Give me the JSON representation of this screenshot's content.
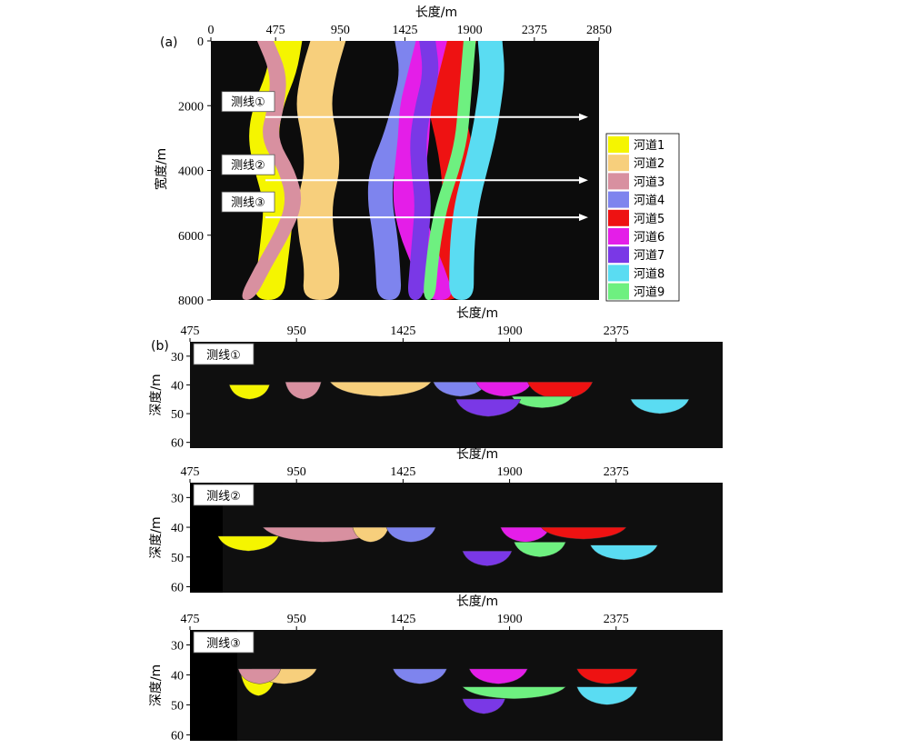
{
  "panel_a": {
    "tag": "(a)",
    "xlabel": "长度/m",
    "ylabel": "宽度/m",
    "x_ticks": [
      "0",
      "475",
      "950",
      "1425",
      "1900",
      "2375",
      "2850"
    ],
    "y_ticks": [
      "0",
      "2000",
      "4000",
      "6000",
      "8000"
    ],
    "survey_lines": [
      {
        "label": "测线①",
        "y": 2350
      },
      {
        "label": "测线②",
        "y": 4300
      },
      {
        "label": "测线③",
        "y": 5450
      }
    ]
  },
  "legend": [
    {
      "name": "河道1",
      "color": "#f5f500"
    },
    {
      "name": "河道2",
      "color": "#f7cf7c"
    },
    {
      "name": "河道3",
      "color": "#d890a0"
    },
    {
      "name": "河道4",
      "color": "#7e84ee"
    },
    {
      "name": "河道5",
      "color": "#ee1212"
    },
    {
      "name": "河道6",
      "color": "#e41ee8"
    },
    {
      "name": "河道7",
      "color": "#7a38e6"
    },
    {
      "name": "河道8",
      "color": "#5adcf2"
    },
    {
      "name": "河道9",
      "color": "#6ef080"
    }
  ],
  "panel_b": {
    "tag": "(b)",
    "xlabel": "长度/m",
    "ylabel": "深度/m",
    "x_ticks": [
      "475",
      "950",
      "1425",
      "1900",
      "2375"
    ],
    "y_ticks": [
      "30",
      "40",
      "50",
      "60"
    ],
    "sections": [
      {
        "label": "测线①"
      },
      {
        "label": "测线②"
      },
      {
        "label": "测线③"
      }
    ]
  },
  "chart_data": [
    {
      "type": "heatmap",
      "title": "",
      "xlabel": "长度/m",
      "ylabel": "宽度/m",
      "xlim": [
        0,
        2850
      ],
      "ylim": [
        0,
        8000
      ],
      "channels": [
        {
          "name": "河道1",
          "center_x": [
            560,
            520,
            420,
            380,
            430,
            500,
            480,
            450,
            420
          ],
          "width": 220
        },
        {
          "name": "河道2",
          "center_x": [
            860,
            790,
            750,
            800,
            820,
            760,
            770,
            820,
            800
          ],
          "width": 260
        },
        {
          "name": "河道3",
          "center_x": [
            400,
            500,
            480,
            420,
            560,
            620,
            520,
            380,
            260
          ],
          "width": 120
        },
        {
          "name": "河道4",
          "center_x": [
            1440,
            1480,
            1420,
            1350,
            1250,
            1240,
            1280,
            1300,
            1310
          ],
          "width": 180
        },
        {
          "name": "河道5",
          "center_x": [
            1820,
            1750,
            1720,
            1780,
            1820,
            1840,
            1800,
            1760,
            1720
          ],
          "width": 260
        },
        {
          "name": "河道6",
          "center_x": [
            1620,
            1560,
            1500,
            1490,
            1460,
            1450,
            1500,
            1600,
            1680
          ],
          "width": 230
        },
        {
          "name": "河道7",
          "center_x": [
            1590,
            1620,
            1560,
            1520,
            1530,
            1560,
            1540,
            1520,
            1500
          ],
          "width": 120
        },
        {
          "name": "河道8",
          "center_x": [
            2050,
            2070,
            2040,
            2000,
            1940,
            1880,
            1850,
            1840,
            1840
          ],
          "width": 180
        },
        {
          "name": "河道9",
          "center_x": [
            1900,
            1880,
            1860,
            1840,
            1780,
            1700,
            1650,
            1620,
            1600
          ],
          "width": 90
        }
      ]
    },
    {
      "type": "heatmap",
      "title": "测线①",
      "xlabel": "长度/m",
      "ylabel": "深度/m",
      "xlim": [
        475,
        2850
      ],
      "ylim": [
        25,
        62
      ],
      "bodies": [
        {
          "name": "河道1",
          "x0": 650,
          "x1": 830,
          "top": 40,
          "bottom": 45
        },
        {
          "name": "河道3",
          "x0": 900,
          "x1": 1060,
          "top": 39,
          "bottom": 45
        },
        {
          "name": "河道2",
          "x0": 1100,
          "x1": 1550,
          "top": 39,
          "bottom": 44
        },
        {
          "name": "河道4",
          "x0": 1560,
          "x1": 1800,
          "top": 39,
          "bottom": 44
        },
        {
          "name": "河道6",
          "x0": 1750,
          "x1": 2000,
          "top": 39,
          "bottom": 44
        },
        {
          "name": "河道5",
          "x0": 1980,
          "x1": 2270,
          "top": 39,
          "bottom": 45
        },
        {
          "name": "河道9",
          "x0": 1910,
          "x1": 2180,
          "top": 44,
          "bottom": 48
        },
        {
          "name": "河道7",
          "x0": 1660,
          "x1": 1950,
          "top": 45,
          "bottom": 51
        },
        {
          "name": "河道8",
          "x0": 2440,
          "x1": 2700,
          "top": 45,
          "bottom": 50
        }
      ]
    },
    {
      "type": "heatmap",
      "title": "测线②",
      "xlabel": "长度/m",
      "ylabel": "深度/m",
      "xlim": [
        475,
        2850
      ],
      "ylim": [
        25,
        62
      ],
      "bodies": [
        {
          "name": "河道1",
          "x0": 600,
          "x1": 870,
          "top": 43,
          "bottom": 48
        },
        {
          "name": "河道3",
          "x0": 800,
          "x1": 1330,
          "top": 40,
          "bottom": 45
        },
        {
          "name": "河道2",
          "x0": 1200,
          "x1": 1360,
          "top": 40,
          "bottom": 45
        },
        {
          "name": "河道4",
          "x0": 1350,
          "x1": 1570,
          "top": 40,
          "bottom": 45
        },
        {
          "name": "河道7",
          "x0": 1690,
          "x1": 1910,
          "top": 48,
          "bottom": 53
        },
        {
          "name": "河道6",
          "x0": 1860,
          "x1": 2080,
          "top": 40,
          "bottom": 45
        },
        {
          "name": "河道5",
          "x0": 2040,
          "x1": 2420,
          "top": 40,
          "bottom": 44
        },
        {
          "name": "河道9",
          "x0": 1920,
          "x1": 2150,
          "top": 45,
          "bottom": 50
        },
        {
          "name": "河道8",
          "x0": 2260,
          "x1": 2560,
          "top": 46,
          "bottom": 51
        }
      ]
    },
    {
      "type": "heatmap",
      "title": "测线③",
      "xlabel": "长度/m",
      "ylabel": "深度/m",
      "xlim": [
        475,
        2850
      ],
      "ylim": [
        25,
        62
      ],
      "bodies": [
        {
          "name": "河道1",
          "x0": 700,
          "x1": 860,
          "top": 39,
          "bottom": 47
        },
        {
          "name": "河道2",
          "x0": 750,
          "x1": 1040,
          "top": 38,
          "bottom": 43
        },
        {
          "name": "河道3",
          "x0": 690,
          "x1": 880,
          "top": 38,
          "bottom": 43
        },
        {
          "name": "河道4",
          "x0": 1380,
          "x1": 1620,
          "top": 38,
          "bottom": 43
        },
        {
          "name": "河道6",
          "x0": 1720,
          "x1": 1980,
          "top": 38,
          "bottom": 43
        },
        {
          "name": "河道9",
          "x0": 1690,
          "x1": 2150,
          "top": 44,
          "bottom": 48
        },
        {
          "name": "河道7",
          "x0": 1690,
          "x1": 1880,
          "top": 48,
          "bottom": 53
        },
        {
          "name": "河道5",
          "x0": 2200,
          "x1": 2470,
          "top": 38,
          "bottom": 43
        },
        {
          "name": "河道8",
          "x0": 2200,
          "x1": 2470,
          "top": 44,
          "bottom": 50
        }
      ]
    }
  ]
}
